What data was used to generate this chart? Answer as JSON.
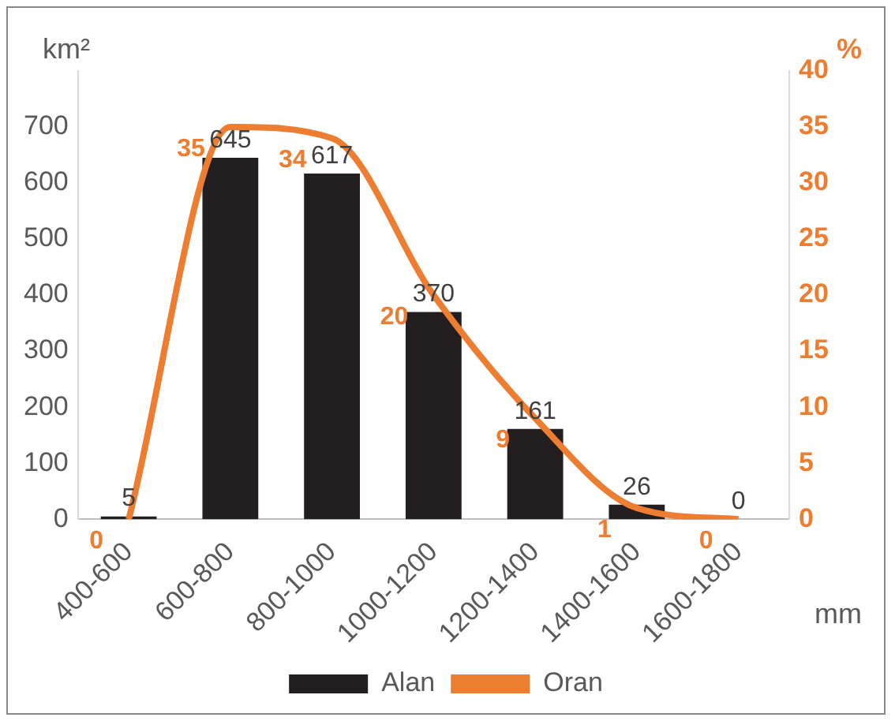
{
  "chart_data": {
    "type": "bar",
    "categories": [
      "400-600",
      "600-800",
      "800-1000",
      "1000-1200",
      "1200-1400",
      "1400-1600",
      "1600-1800"
    ],
    "series": [
      {
        "name": "Alan",
        "color": "#231f20",
        "values": [
          5,
          645,
          617,
          370,
          161,
          26,
          0
        ]
      },
      {
        "name": "Oran",
        "type": "line",
        "axis": "y2",
        "color": "#ed7d31",
        "values": [
          0,
          35,
          34,
          20,
          9,
          1,
          0
        ]
      }
    ],
    "ylabel": "km²",
    "y2label": "%",
    "xlabel": "mm",
    "ylim": [
      0,
      800
    ],
    "yticks": [
      0,
      100,
      200,
      300,
      400,
      500,
      600,
      700
    ],
    "y2lim": [
      0,
      40
    ],
    "y2ticks": [
      0,
      5,
      10,
      15,
      20,
      25,
      30,
      35,
      40
    ],
    "data_labels": true,
    "grid": false,
    "legend": "bottom",
    "marker": "none"
  }
}
